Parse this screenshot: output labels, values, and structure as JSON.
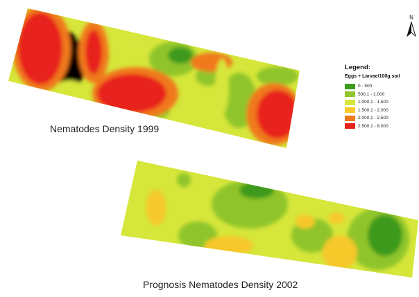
{
  "maps": [
    {
      "caption": "Nematodes Density 1999"
    },
    {
      "caption": "Prognosis Nematodes Density 2002"
    }
  ],
  "legend": {
    "title": "Legend:",
    "subtitle": "Eggs + Larvae/100g soil",
    "classes": [
      {
        "label": "0 - 500",
        "color": "#3c9a1e"
      },
      {
        "label": "500,1 - 1.000",
        "color": "#8fc52a"
      },
      {
        "label": "1.000,1 - 1.500",
        "color": "#d6e63a"
      },
      {
        "label": "1.500,1 - 2.000",
        "color": "#f7c829"
      },
      {
        "label": "2.000,1 - 2.500",
        "color": "#f0791e"
      },
      {
        "label": "2.500,1 - 8.000",
        "color": "#e8221a"
      }
    ]
  },
  "north_arrow": {
    "label": "N",
    "icon": "north-arrow-icon"
  }
}
